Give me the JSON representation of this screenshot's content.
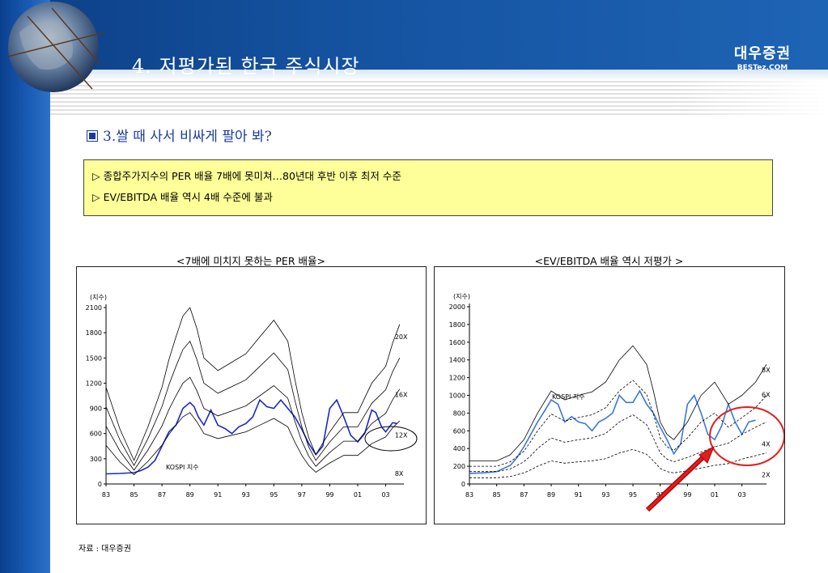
{
  "header": {
    "title": "4. 저평가된 한국 주식시장",
    "logo_main": "대우증권",
    "logo_sub": "BESTez.COM"
  },
  "subtitle": "3.쌀 때 사서 비싸게 팔아 봐?",
  "highlights": [
    "▷ 종합주가지수의 PER 배율 7배에 못미쳐…80년대 후반 이후 최저 수준",
    "▷ EV/EBITDA 배율 역시 4배 수준에 불과"
  ],
  "source": "자료 : 대우증권",
  "chart_data": [
    {
      "type": "line",
      "title": "<7배에 미치지 못하는 PER 배율>",
      "ylabel": "(지수)",
      "x_ticks": [
        "83",
        "85",
        "87",
        "89",
        "91",
        "93",
        "95",
        "97",
        "99",
        "01",
        "03"
      ],
      "y_ticks": [
        0,
        300,
        600,
        900,
        1200,
        1500,
        1800,
        2100
      ],
      "ylim": [
        0,
        2100
      ],
      "xlim": [
        1983,
        2004.3
      ],
      "band_labels": [
        "20X",
        "16X",
        "12X",
        "8X"
      ],
      "annotation": "KOSPI 지수",
      "series": [
        {
          "name": "KOSPI 지수",
          "x": [
            1983,
            1984,
            1985,
            1985.5,
            1986,
            1986.5,
            1987,
            1987.5,
            1988,
            1988.5,
            1989,
            1989.3,
            1989.6,
            1990,
            1990.5,
            1991,
            1991.5,
            1992,
            1992.5,
            1993,
            1993.5,
            1994,
            1994.5,
            1995,
            1995.5,
            1996,
            1996.5,
            1997,
            1997.5,
            1998,
            1998.5,
            1999,
            1999.5,
            2000,
            2000.5,
            2001,
            2001.5,
            2002,
            2002.3,
            2002.7,
            2003,
            2003.5,
            2003.8
          ],
          "values": [
            120,
            125,
            135,
            160,
            200,
            280,
            450,
            620,
            700,
            900,
            970,
            920,
            800,
            700,
            880,
            700,
            660,
            600,
            680,
            720,
            800,
            1000,
            920,
            900,
            1000,
            900,
            800,
            650,
            480,
            350,
            450,
            900,
            1000,
            800,
            580,
            500,
            600,
            880,
            850,
            680,
            620,
            730,
            720
          ]
        },
        {
          "name": "20X",
          "x": [
            1983,
            1984,
            1985,
            1986,
            1987,
            1987.5,
            1988,
            1988.5,
            1989,
            1989.5,
            1990,
            1991,
            1992,
            1993,
            1994,
            1995,
            1996,
            1996.5,
            1997,
            1997.5,
            1998,
            1999,
            2000,
            2001,
            2002,
            2003,
            2003.5,
            2004
          ],
          "values": [
            1150,
            650,
            280,
            680,
            1150,
            1480,
            1750,
            2000,
            2100,
            1850,
            1500,
            1350,
            1450,
            1550,
            1750,
            1950,
            1700,
            1250,
            850,
            550,
            350,
            620,
            850,
            850,
            1200,
            1400,
            1680,
            1900
          ]
        },
        {
          "name": "16X",
          "x": [
            1983,
            1984,
            1985,
            1986,
            1987,
            1987.5,
            1988,
            1988.5,
            1989,
            1989.5,
            1990,
            1991,
            1992,
            1993,
            1994,
            1995,
            1996,
            1996.5,
            1997,
            1997.5,
            1998,
            1999,
            2000,
            2001,
            2002,
            2003,
            2003.5,
            2004
          ],
          "values": [
            920,
            520,
            220,
            540,
            920,
            1180,
            1400,
            1600,
            1700,
            1480,
            1200,
            1080,
            1160,
            1240,
            1400,
            1560,
            1360,
            1000,
            680,
            440,
            280,
            500,
            680,
            680,
            960,
            1120,
            1340,
            1500
          ]
        },
        {
          "name": "12X",
          "x": [
            1983,
            1984,
            1985,
            1986,
            1987,
            1987.5,
            1988,
            1988.5,
            1989,
            1989.5,
            1990,
            1991,
            1992,
            1993,
            1994,
            1995,
            1996,
            1996.5,
            1997,
            1997.5,
            1998,
            1999,
            2000,
            2001,
            2002,
            2003,
            2003.5,
            2004
          ],
          "values": [
            690,
            390,
            165,
            405,
            690,
            885,
            1050,
            1200,
            1270,
            1110,
            900,
            810,
            870,
            930,
            1050,
            1170,
            1020,
            750,
            510,
            330,
            210,
            375,
            510,
            510,
            720,
            840,
            1005,
            1130
          ]
        },
        {
          "name": "8X",
          "x": [
            1983,
            1984,
            1985,
            1986,
            1987,
            1987.5,
            1988,
            1988.5,
            1989,
            1989.5,
            1990,
            1991,
            1992,
            1993,
            1994,
            1995,
            1996,
            1996.5,
            1997,
            1997.5,
            1998,
            1999,
            2000,
            2001,
            2002,
            2003,
            2003.5,
            2004
          ],
          "values": [
            460,
            260,
            110,
            270,
            460,
            590,
            700,
            800,
            850,
            740,
            600,
            540,
            580,
            620,
            700,
            780,
            680,
            500,
            340,
            220,
            140,
            250,
            340,
            340,
            480,
            560,
            670,
            750
          ]
        }
      ]
    },
    {
      "type": "line",
      "title": "<EV/EBITDA 배율 역시 저평가 >",
      "ylabel": "(지수)",
      "x_ticks": [
        "83",
        "85",
        "87",
        "89",
        "91",
        "93",
        "95",
        "97",
        "99",
        "01",
        "03"
      ],
      "y_ticks": [
        0,
        200,
        400,
        600,
        800,
        1000,
        1200,
        1400,
        1600,
        1800,
        2000
      ],
      "ylim": [
        0,
        2000
      ],
      "xlim": [
        1983,
        2004.8
      ],
      "band_labels": [
        "8X",
        "6X",
        "4X",
        "2X"
      ],
      "annotation": "KOSPI 지수",
      "series": [
        {
          "name": "KOSPI 지수",
          "x": [
            1983,
            1984,
            1985,
            1986,
            1986.5,
            1987,
            1987.5,
            1988,
            1988.5,
            1989,
            1989.5,
            1990,
            1990.5,
            1991,
            1991.5,
            1992,
            1992.5,
            1993,
            1993.5,
            1994,
            1994.5,
            1995,
            1995.5,
            1996,
            1996.5,
            1997,
            1997.5,
            1998,
            1998.5,
            1999,
            1999.5,
            2000,
            2000.5,
            2001,
            2001.5,
            2002,
            2002.5,
            2003,
            2003.5,
            2004
          ],
          "values": [
            120,
            125,
            140,
            210,
            300,
            420,
            560,
            700,
            820,
            950,
            900,
            700,
            760,
            700,
            680,
            600,
            700,
            740,
            800,
            1000,
            920,
            920,
            1050,
            900,
            800,
            640,
            500,
            340,
            450,
            900,
            1000,
            800,
            560,
            500,
            650,
            900,
            700,
            560,
            700,
            720
          ]
        },
        {
          "name": "8X",
          "x": [
            1983,
            1985,
            1986,
            1987,
            1987.5,
            1988,
            1989,
            1990,
            1991,
            1992,
            1993,
            1994,
            1995,
            1996,
            1996.5,
            1997,
            1997.5,
            1998,
            1999,
            2000,
            2001,
            2002,
            2003,
            2004,
            2004.8
          ],
          "values": [
            260,
            260,
            330,
            500,
            650,
            800,
            1050,
            950,
            1000,
            1040,
            1150,
            1400,
            1560,
            1350,
            1050,
            700,
            560,
            500,
            700,
            1000,
            1150,
            900,
            1000,
            1150,
            1350
          ]
        },
        {
          "name": "6X",
          "x": [
            1983,
            1985,
            1986,
            1987,
            1987.5,
            1988,
            1989,
            1990,
            1991,
            1992,
            1993,
            1994,
            1995,
            1996,
            1996.5,
            1997,
            1997.5,
            1998,
            1999,
            2000,
            2001,
            2002,
            2003,
            2004,
            2004.8
          ],
          "values": [
            200,
            200,
            250,
            370,
            480,
            600,
            790,
            710,
            750,
            780,
            860,
            1050,
            1170,
            1010,
            790,
            520,
            420,
            380,
            520,
            700,
            800,
            640,
            750,
            860,
            1000
          ]
        },
        {
          "name": "4X",
          "x": [
            1983,
            1985,
            1986,
            1987,
            1987.5,
            1988,
            1989,
            1990,
            1991,
            1992,
            1993,
            1994,
            1995,
            1996,
            1996.5,
            1997,
            1997.5,
            1998,
            1999,
            2000,
            2001,
            2002,
            2003,
            2004,
            2004.8
          ],
          "values": [
            140,
            140,
            170,
            250,
            320,
            400,
            520,
            470,
            500,
            520,
            570,
            700,
            780,
            670,
            520,
            350,
            280,
            250,
            300,
            360,
            420,
            460,
            560,
            640,
            700
          ]
        },
        {
          "name": "2X",
          "x": [
            1983,
            1985,
            1986,
            1987,
            1987.5,
            1988,
            1989,
            1990,
            1991,
            1992,
            1993,
            1994,
            1995,
            1996,
            1996.5,
            1997,
            1997.5,
            1998,
            1999,
            2000,
            2001,
            2002,
            2003,
            2004,
            2004.8
          ],
          "values": [
            70,
            70,
            85,
            125,
            160,
            200,
            260,
            235,
            250,
            260,
            285,
            350,
            390,
            335,
            260,
            175,
            140,
            125,
            150,
            180,
            210,
            230,
            280,
            320,
            350
          ]
        }
      ]
    }
  ]
}
